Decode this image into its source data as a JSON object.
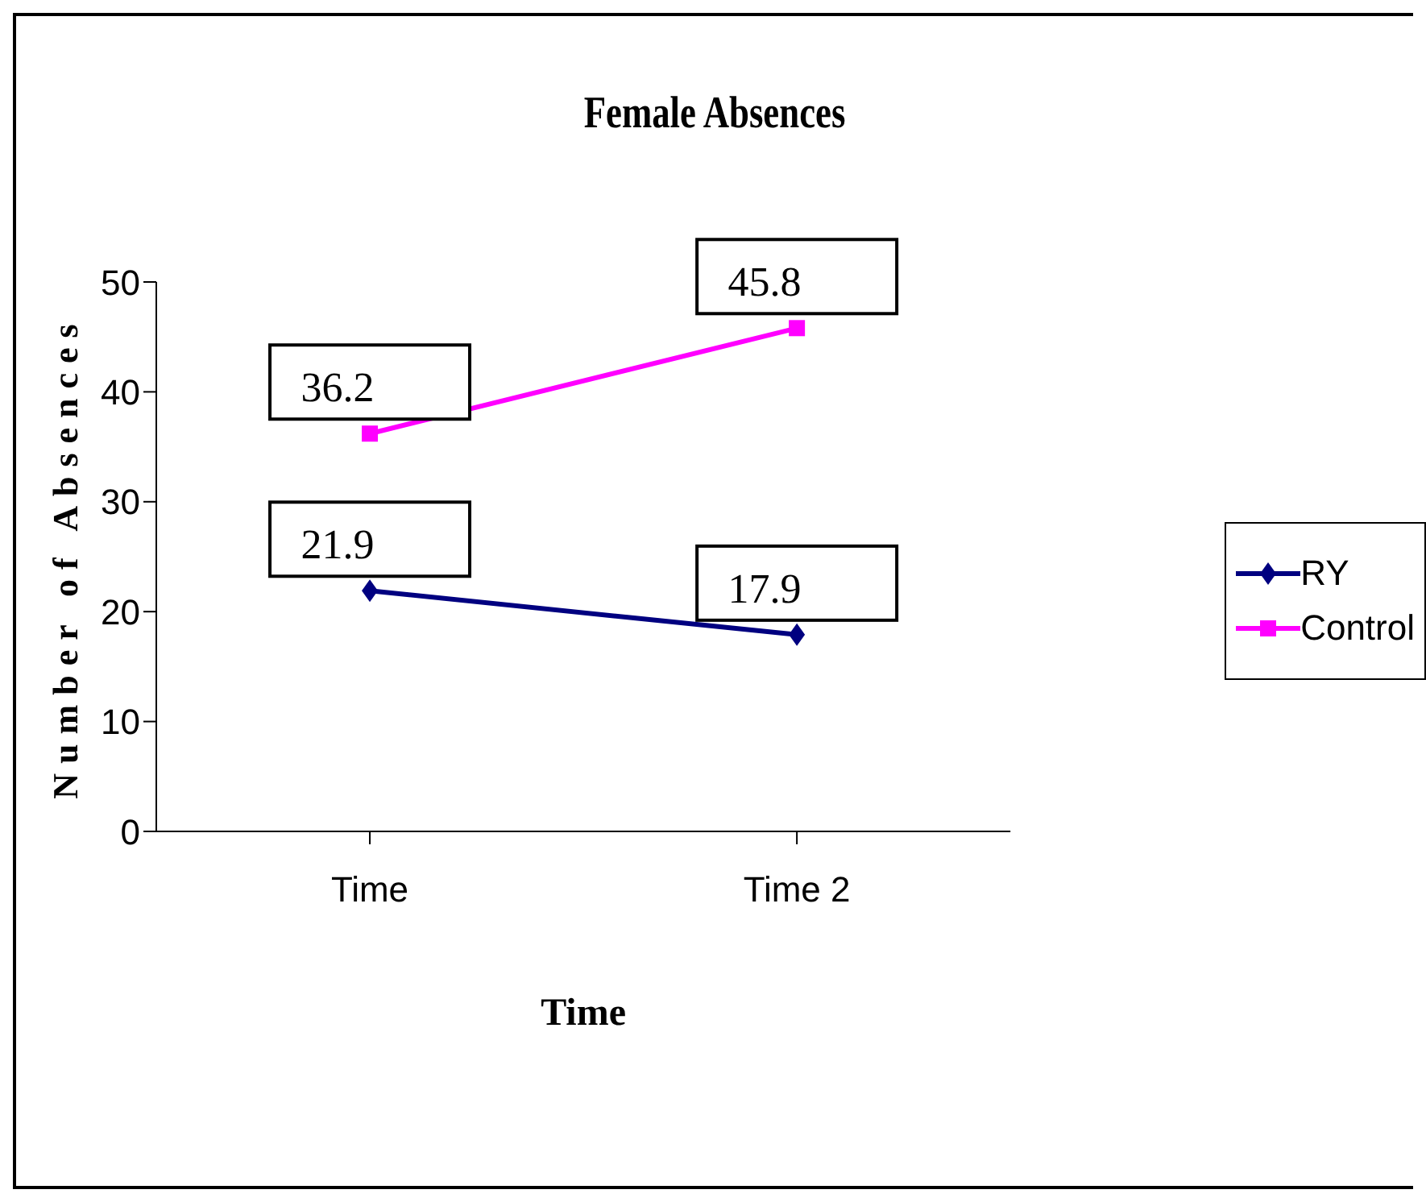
{
  "chart_data": {
    "type": "line",
    "title": "Female Absences",
    "xlabel": "Time",
    "ylabel": "Number of Absences",
    "categories": [
      "Time",
      "Time 2"
    ],
    "series": [
      {
        "name": "RY",
        "color": "#000080",
        "values": [
          21.9,
          17.9
        ],
        "marker": "diamond"
      },
      {
        "name": "Control",
        "color": "#ff00ff",
        "values": [
          36.2,
          45.8
        ],
        "marker": "square"
      }
    ],
    "ylim": [
      0,
      50
    ],
    "yticks": [
      0,
      10,
      20,
      30,
      40,
      50
    ],
    "grid": false,
    "legend": "right",
    "data_labels": true,
    "line_style": "solid"
  }
}
